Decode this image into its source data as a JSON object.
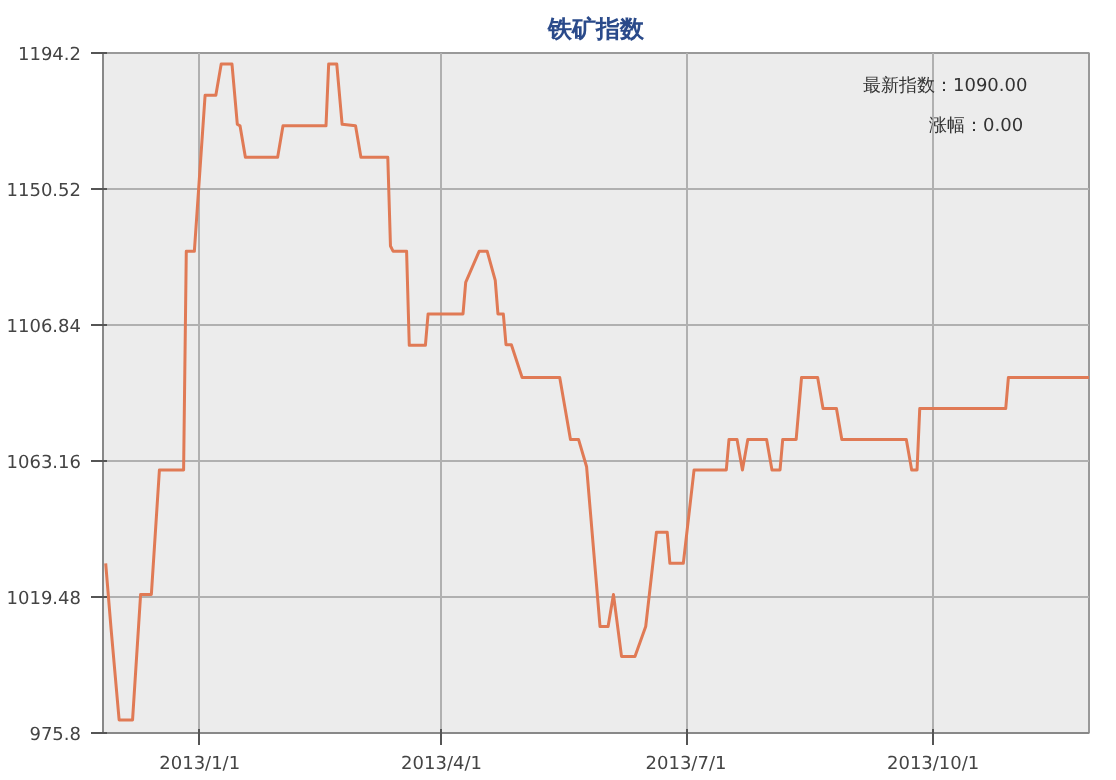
{
  "chart_data": {
    "type": "line",
    "title": "铁矿指数",
    "x": [
      "2012-11-27",
      "2012-11-29",
      "2012-12-02",
      "2012-12-07",
      "2012-12-10",
      "2012-12-14",
      "2012-12-17",
      "2012-12-26",
      "2012-12-27",
      "2012-12-30",
      "2013-01-03",
      "2013-01-07",
      "2013-01-09",
      "2013-01-13",
      "2013-01-15",
      "2013-01-16",
      "2013-01-18",
      "2013-01-30",
      "2013-02-01",
      "2013-02-17",
      "2013-02-18",
      "2013-02-21",
      "2013-02-23",
      "2013-02-28",
      "2013-03-02",
      "2013-03-12",
      "2013-03-13",
      "2013-03-14",
      "2013-03-19",
      "2013-03-20",
      "2013-03-26",
      "2013-03-27",
      "2013-04-09",
      "2013-04-10",
      "2013-04-15",
      "2013-04-18",
      "2013-04-21",
      "2013-04-22",
      "2013-04-24",
      "2013-04-25",
      "2013-04-27",
      "2013-05-01",
      "2013-05-15",
      "2013-05-17",
      "2013-05-19",
      "2013-05-22",
      "2013-05-25",
      "2013-05-30",
      "2013-06-02",
      "2013-06-04",
      "2013-06-07",
      "2013-06-12",
      "2013-06-16",
      "2013-06-20",
      "2013-06-24",
      "2013-06-25",
      "2013-06-30",
      "2013-07-04",
      "2013-07-16",
      "2013-07-17",
      "2013-07-20",
      "2013-07-22",
      "2013-07-24",
      "2013-07-31",
      "2013-08-02",
      "2013-08-05",
      "2013-08-06",
      "2013-08-11",
      "2013-08-13",
      "2013-08-19",
      "2013-08-21",
      "2013-08-26",
      "2013-08-28",
      "2013-09-21",
      "2013-09-23",
      "2013-09-25",
      "2013-09-26",
      "2013-10-28",
      "2013-10-29",
      "2013-11-28"
    ],
    "series": [
      {
        "color": "#e07a55",
        "values": [
          1030.3,
          1009.3,
          980.0,
          980.0,
          1020.3,
          1020.3,
          1060.3,
          1060.3,
          1130.5,
          1130.5,
          1180.6,
          1180.6,
          1190.7,
          1190.7,
          1171.3,
          1170.8,
          1160.7,
          1160.7,
          1170.8,
          1170.8,
          1190.7,
          1190.7,
          1171.3,
          1170.8,
          1160.7,
          1160.7,
          1132.2,
          1130.5,
          1130.5,
          1100.3,
          1100.3,
          1110.4,
          1110.4,
          1120.5,
          1130.5,
          1130.5,
          1121.2,
          1110.4,
          1110.4,
          1100.5,
          1100.5,
          1090.0,
          1090.0,
          1080.0,
          1070.1,
          1070.1,
          1061.3,
          1010.0,
          1010.0,
          1020.3,
          1000.4,
          1000.4,
          1010.0,
          1040.3,
          1040.3,
          1030.3,
          1030.3,
          1060.3,
          1060.3,
          1070.1,
          1070.1,
          1060.3,
          1070.1,
          1070.1,
          1060.3,
          1060.3,
          1070.1,
          1070.1,
          1090.0,
          1090.0,
          1080.0,
          1080.0,
          1070.1,
          1070.1,
          1060.3,
          1060.3,
          1080.0,
          1080.0,
          1090.0,
          1090.0
        ]
      }
    ],
    "xlim": [
      "2012-11-26",
      "2013-11-28"
    ],
    "xticks": [
      {
        "value": "2013-01-01",
        "label": "2013/1/1"
      },
      {
        "value": "2013-04-01",
        "label": "2013/4/1"
      },
      {
        "value": "2013-07-01",
        "label": "2013/7/1"
      },
      {
        "value": "2013-10-01",
        "label": "2013/10/1"
      }
    ],
    "ylim": [
      975.8,
      1194.2
    ],
    "yticks": [
      975.8,
      1019.48,
      1063.16,
      1106.84,
      1150.52,
      1194.2
    ],
    "grid": true,
    "annotations": [
      "最新指数：1090.00",
      "涨幅：0.00"
    ]
  }
}
